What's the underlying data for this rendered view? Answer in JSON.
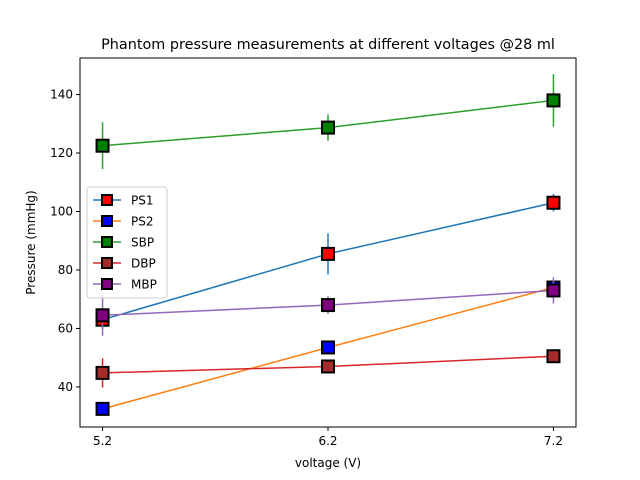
{
  "chart_data": {
    "type": "line",
    "title": "Phantom pressure measurements at different voltages @28 ml",
    "xlabel": "voltage (V)",
    "ylabel": "Pressure (mmHg)",
    "x": [
      5.2,
      6.2,
      7.2
    ],
    "x_tick_labels": [
      "5.2",
      "6.2",
      "7.2"
    ],
    "y_ticks": [
      40,
      60,
      80,
      100,
      120,
      140
    ],
    "y_tick_labels": [
      "40",
      "60",
      "80",
      "100",
      "120",
      "140"
    ],
    "xlim": [
      5.1,
      7.3
    ],
    "ylim": [
      26.3,
      152.5
    ],
    "grid": false,
    "legend_position": "center-left",
    "marker": "square",
    "series": [
      {
        "name": "PS1",
        "line_color": "#1f77b4",
        "marker_color": "#ff0000",
        "values": [
          63.0,
          85.5,
          103.0
        ],
        "errors": [
          3.0,
          7.0,
          3.0
        ]
      },
      {
        "name": "PS2",
        "line_color": "#ff7f0e",
        "marker_color": "#0000ff",
        "values": [
          32.5,
          53.5,
          74.0
        ],
        "errors": [
          0,
          0,
          0
        ]
      },
      {
        "name": "SBP",
        "line_color": "#2ca02c",
        "marker_color": "#008000",
        "values": [
          122.5,
          128.7,
          138.0
        ],
        "errors": [
          8.0,
          4.5,
          9.0
        ]
      },
      {
        "name": "DBP",
        "line_color": "#d62728",
        "marker_color": "#a52a2a",
        "values": [
          44.8,
          47.0,
          50.5
        ],
        "errors": [
          5.0,
          0,
          2.0
        ]
      },
      {
        "name": "MBP",
        "line_color": "#9467bd",
        "marker_color": "#800080",
        "values": [
          64.5,
          68.0,
          73.0
        ],
        "errors": [
          7.0,
          3.0,
          4.5
        ]
      }
    ]
  }
}
